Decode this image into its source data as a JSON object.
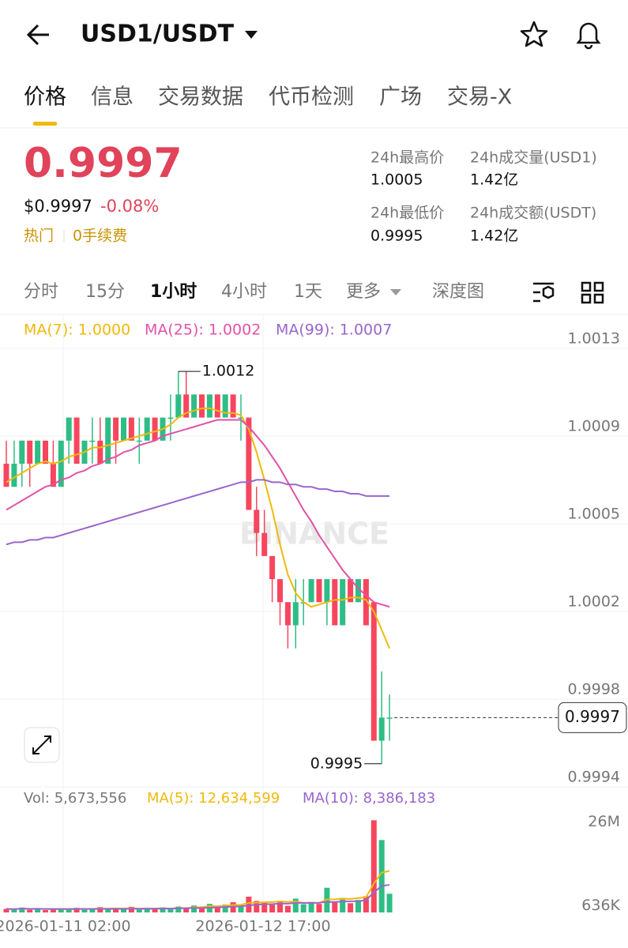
{
  "header": {
    "title": "USD1/USDT"
  },
  "tabs": [
    "价格",
    "信息",
    "交易数据",
    "代币检测",
    "广场",
    "交易-X"
  ],
  "price": {
    "last": "0.9997",
    "usd": "$0.9997",
    "change": "-0.08%",
    "tags": [
      "热门",
      "0手续费"
    ]
  },
  "stats": [
    {
      "label": "24h最高价",
      "value": "1.0005"
    },
    {
      "label": "24h成交量(USD1)",
      "value": "1.42亿"
    },
    {
      "label": "24h最低价",
      "value": "0.9995"
    },
    {
      "label": "24h成交额(USDT)",
      "value": "1.42亿"
    }
  ],
  "intervals": [
    "分时",
    "15分",
    "1小时",
    "4小时",
    "1天",
    "更多",
    "深度图"
  ],
  "chart": {
    "type": "candlestick",
    "up_color": "#2ebd85",
    "down_color": "#f6465d",
    "ma_legend": [
      "MA(7): 1.0000",
      "MA(25): 1.0002",
      "MA(99): 1.0007"
    ],
    "ylim": [
      0.9994,
      1.00144
    ],
    "yticks": [
      {
        "value": 1.0013,
        "label": "1.0013"
      },
      {
        "value": 1.00092,
        "label": "1.0009"
      },
      {
        "value": 1.00054,
        "label": "1.0005"
      },
      {
        "value": 1.00016,
        "label": "1.0002"
      },
      {
        "value": 0.99978,
        "label": "0.9998"
      },
      {
        "value": 0.9994,
        "label": "0.9994"
      }
    ],
    "candles": [
      [
        1.0008,
        1.0009,
        1.0007,
        1.0007
      ],
      [
        1.0007,
        1.0009,
        1.0007,
        1.0008
      ],
      [
        1.0008,
        1.0009,
        1.0007,
        1.0009
      ],
      [
        1.0009,
        1.0009,
        1.0007,
        1.0008
      ],
      [
        1.0008,
        1.0009,
        1.0008,
        1.0009
      ],
      [
        1.0009,
        1.0009,
        1.0008,
        1.0008
      ],
      [
        1.0008,
        1.0009,
        1.0007,
        1.0007
      ],
      [
        1.0007,
        1.0009,
        1.0007,
        1.0009
      ],
      [
        1.0009,
        1.001,
        1.0008,
        1.001
      ],
      [
        1.001,
        1.001,
        1.0008,
        1.0008
      ],
      [
        1.0008,
        1.0009,
        1.0008,
        1.0009
      ],
      [
        1.0009,
        1.001,
        1.0008,
        1.0009
      ],
      [
        1.0009,
        1.001,
        1.0008,
        1.0008
      ],
      [
        1.0008,
        1.001,
        1.0008,
        1.001
      ],
      [
        1.001,
        1.001,
        1.0008,
        1.0009
      ],
      [
        1.0009,
        1.001,
        1.0009,
        1.001
      ],
      [
        1.001,
        1.001,
        1.0009,
        1.0009
      ],
      [
        1.0009,
        1.001,
        1.0008,
        1.0009
      ],
      [
        1.0009,
        1.001,
        1.0009,
        1.001
      ],
      [
        1.001,
        1.001,
        1.0009,
        1.0009
      ],
      [
        1.0009,
        1.001,
        1.0009,
        1.001
      ],
      [
        1.001,
        1.0011,
        1.0009,
        1.001
      ],
      [
        1.001,
        1.0012,
        1.001,
        1.0011
      ],
      [
        1.0011,
        1.0012,
        1.001,
        1.001
      ],
      [
        1.001,
        1.0011,
        1.001,
        1.0011
      ],
      [
        1.0011,
        1.0011,
        1.001,
        1.001
      ],
      [
        1.001,
        1.0011,
        1.001,
        1.0011
      ],
      [
        1.0011,
        1.0011,
        1.001,
        1.001
      ],
      [
        1.001,
        1.0011,
        1.001,
        1.0011
      ],
      [
        1.0011,
        1.0011,
        1.001,
        1.001
      ],
      [
        1.001,
        1.0011,
        1.0009,
        1.001
      ],
      [
        1.001,
        1.001,
        1.0006,
        1.0006
      ],
      [
        1.0006,
        1.0007,
        1.0004,
        1.0005
      ],
      [
        1.0005,
        1.0006,
        1.0004,
        1.0004
      ],
      [
        1.0004,
        1.0004,
        1.0002,
        1.0003
      ],
      [
        1.0003,
        1.0003,
        1.0001,
        1.0002
      ],
      [
        1.0002,
        1.0002,
        1.0,
        1.0001
      ],
      [
        1.0001,
        1.0003,
        1.0,
        1.0002
      ],
      [
        1.0002,
        1.0003,
        1.0001,
        1.0002
      ],
      [
        1.0002,
        1.0003,
        1.0002,
        1.0003
      ],
      [
        1.0003,
        1.0003,
        1.0002,
        1.0002
      ],
      [
        1.0002,
        1.0003,
        1.0001,
        1.0003
      ],
      [
        1.0003,
        1.0003,
        1.0001,
        1.0001
      ],
      [
        1.0001,
        1.0003,
        1.0001,
        1.0003
      ],
      [
        1.0003,
        1.0003,
        1.0002,
        1.0002
      ],
      [
        1.0002,
        1.0003,
        1.0002,
        1.0003
      ],
      [
        1.0003,
        1.0003,
        1.0001,
        1.0001
      ],
      [
        1.0002,
        1.0002,
        0.9996,
        0.9996
      ],
      [
        0.9996,
        0.9999,
        0.9995,
        0.9997
      ],
      [
        0.9997,
        0.9998,
        0.9996,
        0.9997
      ]
    ],
    "ma": [
      {
        "color": "#f0b90b",
        "values": [
          1.00072,
          1.00074,
          1.00076,
          1.00078,
          1.0008,
          1.00081,
          1.0008,
          1.00081,
          1.00083,
          1.00084,
          1.00085,
          1.00087,
          1.00087,
          1.00088,
          1.00089,
          1.0009,
          1.00091,
          1.00092,
          1.00093,
          1.00094,
          1.00095,
          1.00097,
          1.001,
          1.00102,
          1.00103,
          1.00104,
          1.00104,
          1.00103,
          1.00102,
          1.00102,
          1.00101,
          1.00095,
          1.00085,
          1.00073,
          1.0006,
          1.00045,
          1.00032,
          1.00024,
          1.0002,
          1.00018,
          1.00019,
          1.0002,
          1.00021,
          1.00021,
          1.00022,
          1.00022,
          1.00021,
          1.00016,
          1.00008,
          1.0
        ]
      },
      {
        "color": "#e052a8",
        "values": [
          1.0006,
          1.00062,
          1.00064,
          1.00066,
          1.00068,
          1.0007,
          1.00071,
          1.00073,
          1.00074,
          1.00076,
          1.00077,
          1.00079,
          1.0008,
          1.00082,
          1.00083,
          1.00085,
          1.00086,
          1.00088,
          1.00089,
          1.0009,
          1.00092,
          1.00093,
          1.00094,
          1.00095,
          1.00096,
          1.00097,
          1.00098,
          1.00099,
          1.00099,
          1.00099,
          1.00099,
          1.00096,
          1.00092,
          1.00088,
          1.00083,
          1.00078,
          1.00072,
          1.00066,
          1.0006,
          1.00055,
          1.00049,
          1.00044,
          1.00039,
          1.00034,
          1.0003,
          1.00026,
          1.00023,
          1.0002,
          1.00019,
          1.00018
        ]
      },
      {
        "color": "#9966cc",
        "values": [
          1.00045,
          1.00046,
          1.00046,
          1.00047,
          1.00047,
          1.00048,
          1.00048,
          1.00049,
          1.0005,
          1.00051,
          1.00052,
          1.00053,
          1.00054,
          1.00055,
          1.00056,
          1.00057,
          1.00058,
          1.00059,
          1.0006,
          1.00061,
          1.00062,
          1.00063,
          1.00064,
          1.00065,
          1.00066,
          1.00067,
          1.00068,
          1.00069,
          1.0007,
          1.00071,
          1.00072,
          1.00072,
          1.00073,
          1.00073,
          1.00072,
          1.00072,
          1.00071,
          1.00071,
          1.0007,
          1.0007,
          1.00069,
          1.00069,
          1.00068,
          1.00068,
          1.00067,
          1.00067,
          1.00066,
          1.00066,
          1.00066,
          1.00066
        ]
      }
    ],
    "max_label": 1.0012,
    "min_label": 0.9995,
    "last_price": 0.9997,
    "watermark": "BINANCE",
    "x_labels": [
      "2026-01-11 02:00",
      "2026-01-12 17:00"
    ],
    "volume": {
      "legend": [
        "Vol: 5,673,556",
        "MA(5): 12,634,599",
        "MA(10): 8,386,183"
      ],
      "ylim": [
        0,
        30000000
      ],
      "yticks": [
        {
          "value": 26000000,
          "label": "26M"
        },
        {
          "value": 636000,
          "label": "636K"
        }
      ],
      "values": [
        1100000,
        900000,
        1500000,
        800000,
        1300000,
        700000,
        1000000,
        1200000,
        900000,
        1400000,
        800000,
        1100000,
        1600000,
        900000,
        1200000,
        1000000,
        1700000,
        900000,
        1300000,
        1100000,
        1500000,
        1000000,
        1800000,
        1200000,
        2100000,
        1400000,
        2600000,
        1800000,
        2400000,
        3100000,
        2200000,
        4800000,
        3500000,
        2900000,
        2300000,
        3300000,
        2000000,
        4200000,
        2500000,
        3000000,
        2600000,
        7500000,
        3200000,
        4400000,
        2800000,
        3800000,
        4900000,
        28000000,
        22000000,
        5673556
      ],
      "ma": [
        {
          "color": "#f0b90b",
          "values": [
            1100000,
            1000000,
            1170000,
            1080000,
            1120000,
            1040000,
            1060000,
            1000000,
            1020000,
            1040000,
            1060000,
            1080000,
            1160000,
            1160000,
            1220000,
            1160000,
            1280000,
            1140000,
            1220000,
            1200000,
            1300000,
            1160000,
            1340000,
            1320000,
            1540000,
            1600000,
            1940000,
            1860000,
            2060000,
            2260000,
            2300000,
            2900000,
            3000000,
            3100000,
            3140000,
            3360000,
            3200000,
            3340000,
            2860000,
            3000000,
            2860000,
            3960000,
            4000000,
            4140000,
            4100000,
            4340000,
            4620000,
            8780000,
            12100000,
            12634599
          ]
        },
        {
          "color": "#9966cc",
          "values": [
            1100000,
            1000000,
            1170000,
            1080000,
            1120000,
            1050000,
            1040000,
            1060000,
            1040000,
            1080000,
            1050000,
            1070000,
            1080000,
            1090000,
            1120000,
            1080000,
            1150000,
            1110000,
            1150000,
            1120000,
            1190000,
            1180000,
            1250000,
            1280000,
            1350000,
            1350000,
            1440000,
            1530000,
            1640000,
            1760000,
            1830000,
            2170000,
            2340000,
            2510000,
            2530000,
            2720000,
            2660000,
            2900000,
            2910000,
            2900000,
            2940000,
            3210000,
            3180000,
            3330000,
            3380000,
            3430000,
            3720000,
            6100000,
            8060000,
            8386183
          ]
        }
      ]
    }
  }
}
